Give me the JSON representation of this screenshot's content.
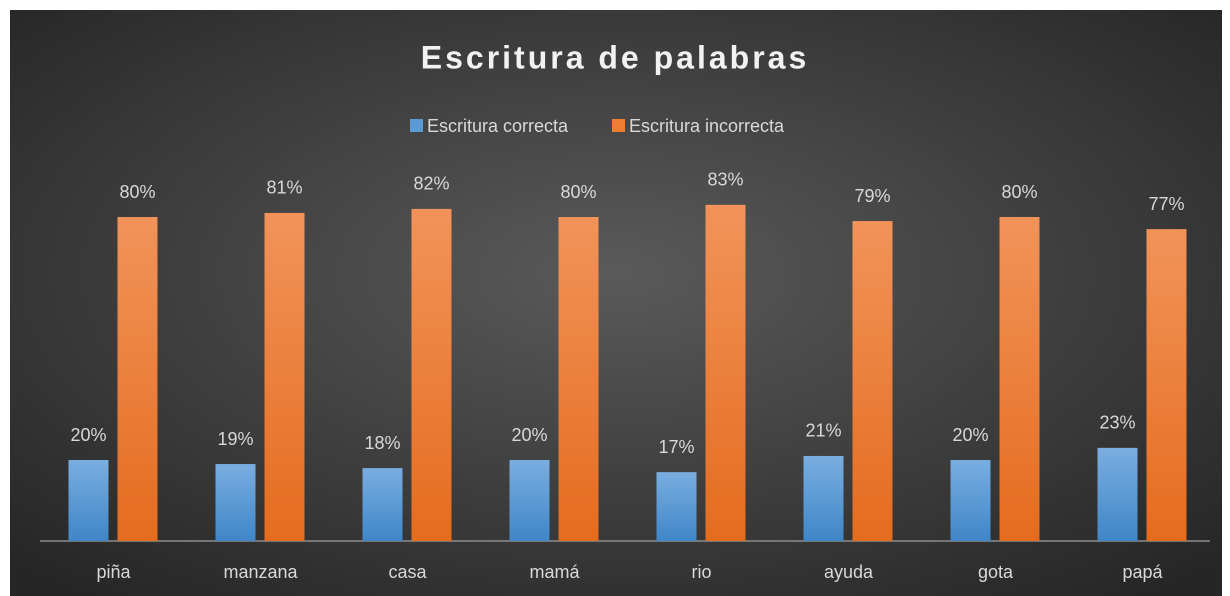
{
  "chart_data": {
    "type": "bar",
    "title": "Escritura de palabras",
    "categories": [
      "piña",
      "manzana",
      "casa",
      "mamá",
      "rio",
      "ayuda",
      "gota",
      "papá"
    ],
    "series": [
      {
        "name": "Escritura correcta",
        "color": "#5b9bd5",
        "values": [
          20,
          19,
          18,
          20,
          17,
          21,
          20,
          23
        ],
        "value_labels": [
          "20%",
          "19%",
          "18%",
          "20%",
          "17%",
          "21%",
          "20%",
          "23%"
        ]
      },
      {
        "name": "Escritura incorrecta",
        "color": "#ed7d31",
        "values": [
          80,
          81,
          82,
          80,
          83,
          79,
          80,
          77
        ],
        "value_labels": [
          "80%",
          "81%",
          "82%",
          "80%",
          "83%",
          "79%",
          "80%",
          "77%"
        ]
      }
    ],
    "ylim": [
      0,
      100
    ],
    "legend": "top"
  }
}
